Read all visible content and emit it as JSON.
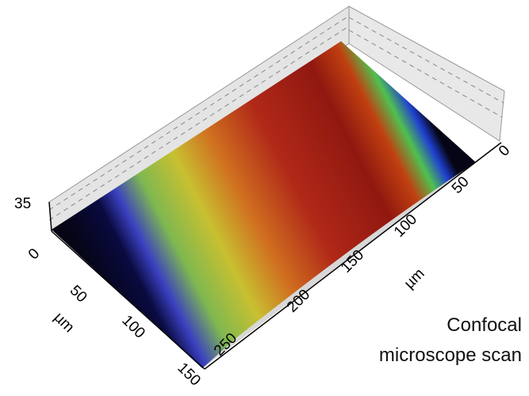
{
  "vertical_axis": {
    "ticks": [
      "35",
      "0"
    ]
  },
  "left_axis": {
    "ticks": [
      "50",
      "100",
      "150"
    ],
    "label": "µm"
  },
  "right_axis": {
    "ticks": [
      "250",
      "200",
      "150",
      "100",
      "50",
      "0"
    ],
    "label": "µm"
  },
  "caption": [
    "Confocal",
    "microscope scan"
  ]
}
